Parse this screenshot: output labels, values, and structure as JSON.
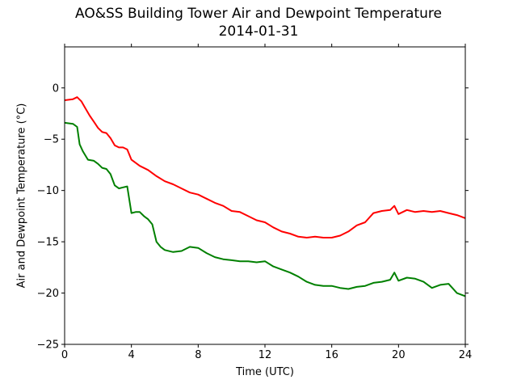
{
  "chart_data": {
    "type": "line",
    "title": "AO&SS Building Tower Air and Dewpoint Temperature",
    "subtitle": "2014-01-31",
    "xlabel": "Time (UTC)",
    "ylabel": "Air and Dewpoint Temperature (°C)",
    "xlim": [
      0,
      24
    ],
    "ylim": [
      -25,
      4
    ],
    "xticks": [
      0,
      4,
      8,
      12,
      16,
      20,
      24
    ],
    "yticks": [
      -25,
      -20,
      -15,
      -10,
      -5,
      0
    ],
    "grid": false,
    "legend": "none",
    "series": [
      {
        "color": "#ff0000",
        "x": [
          0,
          0.5,
          0.75,
          1.0,
          1.25,
          1.5,
          1.75,
          2.0,
          2.25,
          2.5,
          2.75,
          3.0,
          3.25,
          3.5,
          3.75,
          4.0,
          4.5,
          5.0,
          5.5,
          6.0,
          6.5,
          7.0,
          7.5,
          8.0,
          8.5,
          9.0,
          9.5,
          10.0,
          10.5,
          11.0,
          11.5,
          12.0,
          12.5,
          13.0,
          13.5,
          14.0,
          14.5,
          15.0,
          15.5,
          16.0,
          16.5,
          17.0,
          17.5,
          18.0,
          18.5,
          19.0,
          19.5,
          19.75,
          20.0,
          20.5,
          21.0,
          21.5,
          22.0,
          22.5,
          23.0,
          23.5,
          24.0
        ],
        "values": [
          -1.2,
          -1.1,
          -0.9,
          -1.3,
          -2.0,
          -2.7,
          -3.3,
          -3.9,
          -4.3,
          -4.4,
          -4.9,
          -5.6,
          -5.8,
          -5.8,
          -6.0,
          -7.0,
          -7.6,
          -8.0,
          -8.6,
          -9.1,
          -9.4,
          -9.8,
          -10.2,
          -10.4,
          -10.8,
          -11.2,
          -11.5,
          -12.0,
          -12.1,
          -12.5,
          -12.9,
          -13.1,
          -13.6,
          -14.0,
          -14.2,
          -14.5,
          -14.6,
          -14.5,
          -14.6,
          -14.6,
          -14.4,
          -14.0,
          -13.4,
          -13.1,
          -12.2,
          -12.0,
          -11.9,
          -11.5,
          -12.3,
          -11.9,
          -12.1,
          -12.0,
          -12.1,
          -12.0,
          -12.2,
          -12.4,
          -12.7
        ]
      },
      {
        "color": "#008000",
        "x": [
          0,
          0.5,
          0.75,
          0.9,
          1.1,
          1.4,
          1.75,
          2.0,
          2.25,
          2.5,
          2.75,
          3.0,
          3.25,
          3.5,
          3.75,
          4.0,
          4.25,
          4.5,
          4.75,
          5.0,
          5.25,
          5.5,
          5.75,
          6.0,
          6.5,
          7.0,
          7.5,
          8.0,
          8.5,
          9.0,
          9.5,
          10.0,
          10.5,
          11.0,
          11.5,
          12.0,
          12.5,
          13.0,
          13.5,
          14.0,
          14.5,
          15.0,
          15.5,
          16.0,
          16.5,
          17.0,
          17.5,
          18.0,
          18.5,
          19.0,
          19.5,
          19.75,
          20.0,
          20.5,
          21.0,
          21.5,
          22.0,
          22.5,
          23.0,
          23.5,
          24.0
        ],
        "values": [
          -3.4,
          -3.5,
          -3.8,
          -5.5,
          -6.2,
          -7.0,
          -7.1,
          -7.4,
          -7.8,
          -7.9,
          -8.4,
          -9.5,
          -9.8,
          -9.7,
          -9.6,
          -12.2,
          -12.1,
          -12.1,
          -12.5,
          -12.8,
          -13.3,
          -15.0,
          -15.5,
          -15.8,
          -16.0,
          -15.9,
          -15.5,
          -15.6,
          -16.1,
          -16.5,
          -16.7,
          -16.8,
          -16.9,
          -16.9,
          -17.0,
          -16.9,
          -17.4,
          -17.7,
          -18.0,
          -18.4,
          -18.9,
          -19.2,
          -19.3,
          -19.3,
          -19.5,
          -19.6,
          -19.4,
          -19.3,
          -19.0,
          -18.9,
          -18.7,
          -18.0,
          -18.8,
          -18.5,
          -18.6,
          -18.9,
          -19.5,
          -19.2,
          -19.1,
          -20.0,
          -20.3
        ]
      }
    ]
  }
}
